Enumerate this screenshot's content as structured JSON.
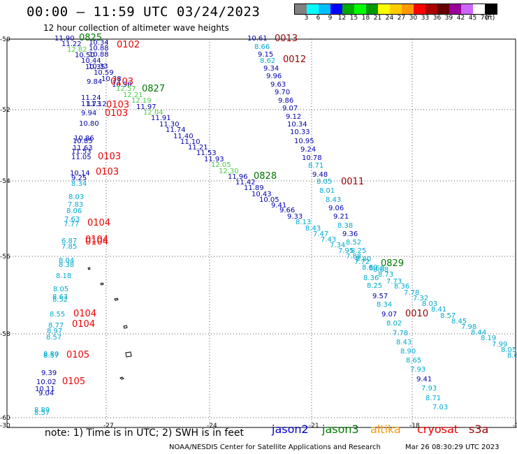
{
  "header": {
    "title": "00:00 — 11:59 UTC 03/24/2023",
    "subtitle": "12 hour collection of altimeter wave heights"
  },
  "legend": {
    "colors": [
      "#808080",
      "#00ffff",
      "#00bfff",
      "#0000ff",
      "#00aa00",
      "#00ff00",
      "#009900",
      "#ffff00",
      "#ffcc00",
      "#ff9900",
      "#ff0000",
      "#aa0000",
      "#660000",
      "#990099",
      "#cc66ff",
      "#ffffff",
      "#000000"
    ],
    "labels": [
      "3",
      "6",
      "9",
      "12",
      "15",
      "18",
      "21",
      "24",
      "27",
      "30",
      "33",
      "36",
      "39",
      "42",
      "45",
      "70",
      "(ft)"
    ]
  },
  "axes": {
    "y_ticks": [
      "-50",
      "-52",
      "-54",
      "-56",
      "-58",
      "-60"
    ],
    "x_ticks": [
      "-30",
      "-27",
      "-24",
      "-21",
      "-18",
      "-15"
    ]
  },
  "note": "note: 1) Time is in UTC; 2) SWH is in feet",
  "satellites": [
    {
      "name": "jason2",
      "color": "#0000cc"
    },
    {
      "name": "jason3",
      "color": "#007700"
    },
    {
      "name": "altika",
      "color": "#ff9900"
    },
    {
      "name": "cryosat",
      "color": "#ee0000"
    },
    {
      "name": "s3a",
      "color": "#990000"
    }
  ],
  "footer": "NOAA/NESDIS Center for Satellite Applications and Research",
  "footer_date": "Mar 26 08:30:29 UTC 2023",
  "map_labels": [
    {
      "t": "11.90",
      "c": "#0000aa",
      "x": 78,
      "y": 58
    },
    {
      "t": "0825",
      "c": "#007700",
      "x": 113,
      "y": 58
    },
    {
      "t": "11.22",
      "c": "#0000aa",
      "x": 88,
      "y": 66
    },
    {
      "t": "10.34",
      "c": "#0000aa",
      "x": 127,
      "y": 64
    },
    {
      "t": "10.88",
      "c": "#0000aa",
      "x": 127,
      "y": 72
    },
    {
      "t": "0102",
      "c": "#ee0000",
      "x": 167,
      "y": 68
    },
    {
      "t": "12.82",
      "c": "#44cc44",
      "x": 96,
      "y": 74
    },
    {
      "t": "10.50",
      "c": "#0000aa",
      "x": 107,
      "y": 82
    },
    {
      "t": "10.88",
      "c": "#0000aa",
      "x": 127,
      "y": 81
    },
    {
      "t": "10.44",
      "c": "#0000aa",
      "x": 116,
      "y": 90
    },
    {
      "t": "10.35",
      "c": "#0000aa",
      "x": 122,
      "y": 99
    },
    {
      "t": "10.33",
      "c": "#0000aa",
      "x": 126,
      "y": 98
    },
    {
      "t": "10.59",
      "c": "#0000aa",
      "x": 134,
      "y": 107
    },
    {
      "t": "9.84",
      "c": "#0000aa",
      "x": 124,
      "y": 120
    },
    {
      "t": "10.38",
      "c": "#0000aa",
      "x": 145,
      "y": 116
    },
    {
      "t": "10.90",
      "c": "#0000aa",
      "x": 160,
      "y": 124
    },
    {
      "t": "0103",
      "c": "#ee0000",
      "x": 158,
      "y": 121
    },
    {
      "t": "12.57",
      "c": "#44cc44",
      "x": 166,
      "y": 130
    },
    {
      "t": "0827",
      "c": "#007700",
      "x": 203,
      "y": 131
    },
    {
      "t": "12.21",
      "c": "#44cc44",
      "x": 176,
      "y": 139
    },
    {
      "t": "12.19",
      "c": "#44cc44",
      "x": 188,
      "y": 147
    },
    {
      "t": "11.24",
      "c": "#0000aa",
      "x": 116,
      "y": 143
    },
    {
      "t": "11.73",
      "c": "#0000aa",
      "x": 116,
      "y": 152
    },
    {
      "t": "11.12",
      "c": "#0000aa",
      "x": 124,
      "y": 152
    },
    {
      "t": "0103",
      "c": "#ee0000",
      "x": 152,
      "y": 154
    },
    {
      "t": "11.97",
      "c": "#0000aa",
      "x": 195,
      "y": 156
    },
    {
      "t": "12.04",
      "c": "#44cc44",
      "x": 205,
      "y": 164
    },
    {
      "t": "9.94",
      "c": "#0000aa",
      "x": 116,
      "y": 165
    },
    {
      "t": "0103",
      "c": "#ee0000",
      "x": 150,
      "y": 166
    },
    {
      "t": "11.91",
      "c": "#0000aa",
      "x": 216,
      "y": 172
    },
    {
      "t": "10.80",
      "c": "#0000aa",
      "x": 113,
      "y": 180
    },
    {
      "t": "11.30",
      "c": "#0000aa",
      "x": 228,
      "y": 181
    },
    {
      "t": "11.74",
      "c": "#0000aa",
      "x": 237,
      "y": 189
    },
    {
      "t": "11.40",
      "c": "#0000aa",
      "x": 248,
      "y": 198
    },
    {
      "t": "10.86",
      "c": "#0000aa",
      "x": 106,
      "y": 201
    },
    {
      "t": "10.85",
      "c": "#0000aa",
      "x": 104,
      "y": 205
    },
    {
      "t": "11.10",
      "c": "#0000aa",
      "x": 258,
      "y": 206
    },
    {
      "t": "11.63",
      "c": "#0000aa",
      "x": 104,
      "y": 215
    },
    {
      "t": "11.21",
      "c": "#0000aa",
      "x": 269,
      "y": 214
    },
    {
      "t": "11.53",
      "c": "#0000aa",
      "x": 102,
      "y": 220
    },
    {
      "t": "11.05",
      "c": "#0000aa",
      "x": 102,
      "y": 228
    },
    {
      "t": "0103",
      "c": "#ee0000",
      "x": 140,
      "y": 228
    },
    {
      "t": "11.53",
      "c": "#0000aa",
      "x": 281,
      "y": 222
    },
    {
      "t": "11.93",
      "c": "#0000aa",
      "x": 292,
      "y": 231
    },
    {
      "t": "12.05",
      "c": "#44cc44",
      "x": 302,
      "y": 239
    },
    {
      "t": "12.30",
      "c": "#44cc44",
      "x": 313,
      "y": 248
    },
    {
      "t": "10.14",
      "c": "#0000aa",
      "x": 100,
      "y": 251
    },
    {
      "t": "0103",
      "c": "#ee0000",
      "x": 137,
      "y": 250
    },
    {
      "t": "9.25",
      "c": "#0000aa",
      "x": 102,
      "y": 258
    },
    {
      "t": "11.96",
      "c": "#0000aa",
      "x": 326,
      "y": 256
    },
    {
      "t": "0828",
      "c": "#007700",
      "x": 363,
      "y": 256
    },
    {
      "t": "11.42",
      "c": "#0000aa",
      "x": 337,
      "y": 264
    },
    {
      "t": "8.34",
      "c": "#00aacc",
      "x": 102,
      "y": 266
    },
    {
      "t": "11.89",
      "c": "#0000aa",
      "x": 349,
      "y": 272
    },
    {
      "t": "10.43",
      "c": "#0000aa",
      "x": 360,
      "y": 281
    },
    {
      "t": "8.03",
      "c": "#00aacc",
      "x": 98,
      "y": 285
    },
    {
      "t": "10.05",
      "c": "#0000aa",
      "x": 371,
      "y": 289
    },
    {
      "t": "7.83",
      "c": "#00aacc",
      "x": 97,
      "y": 296
    },
    {
      "t": "9.41",
      "c": "#0000aa",
      "x": 388,
      "y": 297
    },
    {
      "t": "8.06",
      "c": "#00aacc",
      "x": 95,
      "y": 305
    },
    {
      "t": "9.66",
      "c": "#0000aa",
      "x": 400,
      "y": 304
    },
    {
      "t": "9.33",
      "c": "#0000aa",
      "x": 411,
      "y": 313
    },
    {
      "t": "7.63",
      "c": "#00aacc",
      "x": 92,
      "y": 317
    },
    {
      "t": "7.77",
      "c": "#00aacc",
      "x": 91,
      "y": 324
    },
    {
      "t": "0104",
      "c": "#ee0000",
      "x": 125,
      "y": 323
    },
    {
      "t": "8.13",
      "c": "#00aacc",
      "x": 423,
      "y": 321
    },
    {
      "t": "8.43",
      "c": "#00aacc",
      "x": 437,
      "y": 330
    },
    {
      "t": "7.47",
      "c": "#00aacc",
      "x": 448,
      "y": 338
    },
    {
      "t": "7.43",
      "c": "#00aacc",
      "x": 459,
      "y": 346
    },
    {
      "t": "7.34",
      "c": "#00aacc",
      "x": 472,
      "y": 354
    },
    {
      "t": "6.87",
      "c": "#00aacc",
      "x": 88,
      "y": 348
    },
    {
      "t": "0104",
      "c": "#ee0000",
      "x": 122,
      "y": 347
    },
    {
      "t": "7.85",
      "c": "#00aacc",
      "x": 88,
      "y": 356
    },
    {
      "t": "0104",
      "c": "#ee0000",
      "x": 122,
      "y": 350
    },
    {
      "t": "7.95",
      "c": "#00aacc",
      "x": 484,
      "y": 362
    },
    {
      "t": "7.88",
      "c": "#00aacc",
      "x": 495,
      "y": 370
    },
    {
      "t": "8.04",
      "c": "#00aacc",
      "x": 84,
      "y": 376
    },
    {
      "t": "8.38",
      "c": "#00aacc",
      "x": 84,
      "y": 382
    },
    {
      "t": "7.72",
      "c": "#00aacc",
      "x": 507,
      "y": 378
    },
    {
      "t": "8.60",
      "c": "#00aacc",
      "x": 518,
      "y": 386
    },
    {
      "t": "8.18",
      "c": "#00aacc",
      "x": 80,
      "y": 398
    },
    {
      "t": "8.36",
      "c": "#00aacc",
      "x": 520,
      "y": 401
    },
    {
      "t": "8.25",
      "c": "#00aacc",
      "x": 525,
      "y": 412
    },
    {
      "t": "8.05",
      "c": "#00aacc",
      "x": 76,
      "y": 417
    },
    {
      "t": "8.63",
      "c": "#00aacc",
      "x": 75,
      "y": 428
    },
    {
      "t": "8.52",
      "c": "#00aacc",
      "x": 75,
      "y": 432
    },
    {
      "t": "8.34",
      "c": "#00aacc",
      "x": 539,
      "y": 439
    },
    {
      "t": "8.55",
      "c": "#00aacc",
      "x": 71,
      "y": 453
    },
    {
      "t": "0104",
      "c": "#ee0000",
      "x": 105,
      "y": 453
    },
    {
      "t": "8.77",
      "c": "#00aacc",
      "x": 69,
      "y": 469
    },
    {
      "t": "0104",
      "c": "#ee0000",
      "x": 103,
      "y": 468
    },
    {
      "t": "8.97",
      "c": "#00aacc",
      "x": 67,
      "y": 477
    },
    {
      "t": "8.57",
      "c": "#00aacc",
      "x": 66,
      "y": 486
    },
    {
      "t": "8.80",
      "c": "#00aacc",
      "x": 62,
      "y": 510
    },
    {
      "t": "8.57",
      "c": "#00aacc",
      "x": 62,
      "y": 512
    },
    {
      "t": "0105",
      "c": "#ee0000",
      "x": 95,
      "y": 512
    },
    {
      "t": "9.39",
      "c": "#0000aa",
      "x": 59,
      "y": 537
    },
    {
      "t": "10.02",
      "c": "#0000aa",
      "x": 52,
      "y": 550
    },
    {
      "t": "0105",
      "c": "#ee0000",
      "x": 89,
      "y": 550
    },
    {
      "t": "10.11",
      "c": "#0000aa",
      "x": 50,
      "y": 560
    },
    {
      "t": "9.04",
      "c": "#0000aa",
      "x": 55,
      "y": 566
    },
    {
      "t": "8.89",
      "c": "#00aacc",
      "x": 49,
      "y": 590
    },
    {
      "t": "8.57",
      "c": "#00aacc",
      "x": 49,
      "y": 594
    },
    {
      "t": "10.61",
      "c": "#0000aa",
      "x": 354,
      "y": 58
    },
    {
      "t": "0013",
      "c": "#990000",
      "x": 393,
      "y": 59
    },
    {
      "t": "8.66",
      "c": "#00aacc",
      "x": 364,
      "y": 70
    },
    {
      "t": "9.15",
      "c": "#0000aa",
      "x": 369,
      "y": 81
    },
    {
      "t": "8.62",
      "c": "#00aacc",
      "x": 372,
      "y": 90
    },
    {
      "t": "0012",
      "c": "#990000",
      "x": 405,
      "y": 89
    },
    {
      "t": "9.34",
      "c": "#0000aa",
      "x": 377,
      "y": 101
    },
    {
      "t": "9.96",
      "c": "#0000aa",
      "x": 381,
      "y": 112
    },
    {
      "t": "9.63",
      "c": "#0000aa",
      "x": 387,
      "y": 124
    },
    {
      "t": "9.70",
      "c": "#0000aa",
      "x": 393,
      "y": 135
    },
    {
      "t": "9.86",
      "c": "#0000aa",
      "x": 398,
      "y": 147
    },
    {
      "t": "9.07",
      "c": "#0000aa",
      "x": 404,
      "y": 158
    },
    {
      "t": "9.12",
      "c": "#0000aa",
      "x": 409,
      "y": 170
    },
    {
      "t": "10.34",
      "c": "#0000aa",
      "x": 411,
      "y": 181
    },
    {
      "t": "10.33",
      "c": "#0000aa",
      "x": 415,
      "y": 192
    },
    {
      "t": "10.95",
      "c": "#0000aa",
      "x": 421,
      "y": 205
    },
    {
      "t": "9.24",
      "c": "#0000aa",
      "x": 430,
      "y": 217
    },
    {
      "t": "10.78",
      "c": "#0000aa",
      "x": 432,
      "y": 229
    },
    {
      "t": "8.71",
      "c": "#00aacc",
      "x": 441,
      "y": 240
    },
    {
      "t": "9.48",
      "c": "#0000aa",
      "x": 447,
      "y": 253
    },
    {
      "t": "8.05",
      "c": "#00aacc",
      "x": 453,
      "y": 263
    },
    {
      "t": "0011",
      "c": "#990000",
      "x": 488,
      "y": 264
    },
    {
      "t": "8.01",
      "c": "#00aacc",
      "x": 457,
      "y": 276
    },
    {
      "t": "8.43",
      "c": "#00aacc",
      "x": 466,
      "y": 289
    },
    {
      "t": "9.06",
      "c": "#0000aa",
      "x": 470,
      "y": 301
    },
    {
      "t": "9.21",
      "c": "#0000aa",
      "x": 477,
      "y": 313
    },
    {
      "t": "8.38",
      "c": "#00aacc",
      "x": 483,
      "y": 326
    },
    {
      "t": "9.36",
      "c": "#0000aa",
      "x": 490,
      "y": 338
    },
    {
      "t": "8.52",
      "c": "#00aacc",
      "x": 495,
      "y": 350
    },
    {
      "t": "8.25",
      "c": "#00aacc",
      "x": 502,
      "y": 362
    },
    {
      "t": "8.80",
      "c": "#00aacc",
      "x": 509,
      "y": 374
    },
    {
      "t": "0829",
      "c": "#007700",
      "x": 545,
      "y": 381
    },
    {
      "t": "8.60",
      "c": "#00aacc",
      "x": 528,
      "y": 387
    },
    {
      "t": "8.68",
      "c": "#00aacc",
      "x": 534,
      "y": 389
    },
    {
      "t": "8.73",
      "c": "#00aacc",
      "x": 541,
      "y": 396
    },
    {
      "t": "7.73",
      "c": "#00aacc",
      "x": 553,
      "y": 406
    },
    {
      "t": "8.36",
      "c": "#00aacc",
      "x": 564,
      "y": 413
    },
    {
      "t": "9.57",
      "c": "#0000aa",
      "x": 533,
      "y": 427
    },
    {
      "t": "7.78",
      "c": "#00aacc",
      "x": 578,
      "y": 422
    },
    {
      "t": "7.32",
      "c": "#00aacc",
      "x": 591,
      "y": 430
    },
    {
      "t": "8.03",
      "c": "#00aacc",
      "x": 604,
      "y": 438
    },
    {
      "t": "8.41",
      "c": "#00aacc",
      "x": 617,
      "y": 446
    },
    {
      "t": "9.07",
      "c": "#0000aa",
      "x": 546,
      "y": 453
    },
    {
      "t": "0010",
      "c": "#990000",
      "x": 580,
      "y": 453
    },
    {
      "t": "8.57",
      "c": "#00aacc",
      "x": 630,
      "y": 455
    },
    {
      "t": "8.45",
      "c": "#00aacc",
      "x": 646,
      "y": 463
    },
    {
      "t": "8.02",
      "c": "#00aacc",
      "x": 553,
      "y": 466
    },
    {
      "t": "7.98",
      "c": "#00aacc",
      "x": 660,
      "y": 471
    },
    {
      "t": "8.44",
      "c": "#00aacc",
      "x": 674,
      "y": 479
    },
    {
      "t": "7.78",
      "c": "#00aacc",
      "x": 562,
      "y": 480
    },
    {
      "t": "8.19",
      "c": "#00aacc",
      "x": 688,
      "y": 487
    },
    {
      "t": "8.43",
      "c": "#00aacc",
      "x": 567,
      "y": 493
    },
    {
      "t": "7.99",
      "c": "#00aacc",
      "x": 704,
      "y": 496
    },
    {
      "t": "8.05",
      "c": "#00aacc",
      "x": 717,
      "y": 504
    },
    {
      "t": "8.90",
      "c": "#00aacc",
      "x": 573,
      "y": 506
    },
    {
      "t": "8.68",
      "c": "#00aacc",
      "x": 726,
      "y": 512
    },
    {
      "t": "8.65",
      "c": "#00aacc",
      "x": 581,
      "y": 519
    },
    {
      "t": "7.93",
      "c": "#00aacc",
      "x": 587,
      "y": 532
    },
    {
      "t": "9.41",
      "c": "#0000aa",
      "x": 596,
      "y": 546
    },
    {
      "t": "7.93",
      "c": "#00aacc",
      "x": 603,
      "y": 559
    },
    {
      "t": "8.71",
      "c": "#00aacc",
      "x": 609,
      "y": 573
    },
    {
      "t": "7.03",
      "c": "#00aacc",
      "x": 619,
      "y": 586
    }
  ]
}
